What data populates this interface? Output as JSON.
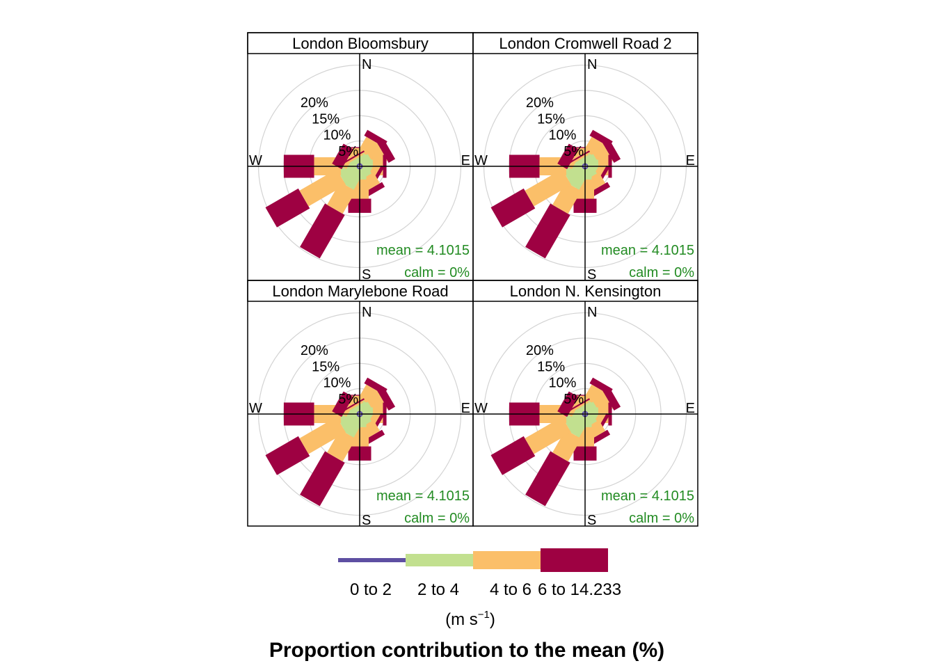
{
  "chart_data": {
    "type": "polar-bar",
    "title": "Proportion contribution to the mean (%)",
    "legend": {
      "bins": [
        "0 to 2",
        "2 to 4",
        "4 to 6",
        "6 to 14.233"
      ],
      "colors": [
        "#5e4fa2",
        "#c2e08f",
        "#fbbf69",
        "#9e0142"
      ],
      "units": "(m s",
      "units_sup": "−1",
      "units_close": ")"
    },
    "directions": [
      0,
      30,
      60,
      90,
      120,
      150,
      180,
      210,
      240,
      270,
      300,
      330
    ],
    "radial_ticks": [
      5,
      10,
      15,
      20
    ],
    "radial_tick_labels": [
      "5%",
      "10%",
      "15%",
      "20%"
    ],
    "radial_max": 22,
    "compass": {
      "n": "N",
      "e": "E",
      "s": "S",
      "w": "W"
    },
    "panels": [
      {
        "name": "London Bloomsbury",
        "mean_label": "mean = 4.1015",
        "calm_label": "calm = 0%",
        "cumulative": [
          [
            0.6,
            2.3,
            3.6,
            3.8
          ],
          [
            0.6,
            2.6,
            5.7,
            7.0
          ],
          [
            0.6,
            2.6,
            5.3,
            6.8
          ],
          [
            0.6,
            2.6,
            4.6,
            5.3
          ],
          [
            0.6,
            2.3,
            3.6,
            4.3
          ],
          [
            0.6,
            2.4,
            4.9,
            6.0
          ],
          [
            0.6,
            2.6,
            6.4,
            9.2
          ],
          [
            0.6,
            4.6,
            9.8,
            19.7
          ],
          [
            0.6,
            4.2,
            12.7,
            20.2
          ],
          [
            0.6,
            3.7,
            9.0,
            15.0
          ],
          [
            0.6,
            2.0,
            2.8,
            5.0
          ],
          [
            0.6,
            1.6,
            2.0,
            2.3
          ]
        ]
      },
      {
        "name": "London Cromwell Road 2",
        "mean_label": "mean = 4.1015",
        "calm_label": "calm = 0%",
        "cumulative": [
          [
            0.6,
            2.3,
            3.6,
            3.8
          ],
          [
            0.6,
            2.6,
            5.7,
            7.0
          ],
          [
            0.6,
            2.6,
            5.3,
            6.8
          ],
          [
            0.6,
            2.6,
            4.6,
            5.3
          ],
          [
            0.6,
            2.3,
            3.6,
            4.3
          ],
          [
            0.6,
            2.4,
            4.9,
            6.0
          ],
          [
            0.6,
            2.6,
            6.4,
            9.2
          ],
          [
            0.6,
            4.6,
            9.8,
            19.7
          ],
          [
            0.6,
            4.2,
            12.7,
            20.2
          ],
          [
            0.6,
            3.7,
            9.0,
            15.0
          ],
          [
            0.6,
            2.0,
            2.8,
            5.0
          ],
          [
            0.6,
            1.6,
            2.0,
            2.3
          ]
        ]
      },
      {
        "name": "London Marylebone Road",
        "mean_label": "mean = 4.1015",
        "calm_label": "calm = 0%",
        "cumulative": [
          [
            0.6,
            2.3,
            3.6,
            3.8
          ],
          [
            0.6,
            2.6,
            5.7,
            7.0
          ],
          [
            0.6,
            2.6,
            5.3,
            6.8
          ],
          [
            0.6,
            2.6,
            4.6,
            5.3
          ],
          [
            0.6,
            2.3,
            3.6,
            4.3
          ],
          [
            0.6,
            2.4,
            4.9,
            6.0
          ],
          [
            0.6,
            2.6,
            6.4,
            9.2
          ],
          [
            0.6,
            4.6,
            9.8,
            19.7
          ],
          [
            0.6,
            4.2,
            12.7,
            20.2
          ],
          [
            0.6,
            3.7,
            9.0,
            15.0
          ],
          [
            0.6,
            2.0,
            2.8,
            5.0
          ],
          [
            0.6,
            1.6,
            2.0,
            2.3
          ]
        ]
      },
      {
        "name": "London N. Kensington",
        "mean_label": "mean = 4.1015",
        "calm_label": "calm = 0%",
        "cumulative": [
          [
            0.6,
            2.3,
            3.6,
            3.8
          ],
          [
            0.6,
            2.6,
            5.7,
            7.0
          ],
          [
            0.6,
            2.6,
            5.3,
            6.8
          ],
          [
            0.6,
            2.6,
            4.6,
            5.3
          ],
          [
            0.6,
            2.3,
            3.6,
            4.3
          ],
          [
            0.6,
            2.4,
            4.9,
            6.0
          ],
          [
            0.6,
            2.6,
            6.4,
            9.2
          ],
          [
            0.6,
            4.6,
            9.8,
            19.7
          ],
          [
            0.6,
            4.2,
            12.7,
            20.2
          ],
          [
            0.6,
            3.7,
            9.0,
            15.0
          ],
          [
            0.6,
            2.0,
            2.8,
            5.0
          ],
          [
            0.6,
            1.6,
            2.0,
            2.3
          ]
        ]
      }
    ]
  }
}
